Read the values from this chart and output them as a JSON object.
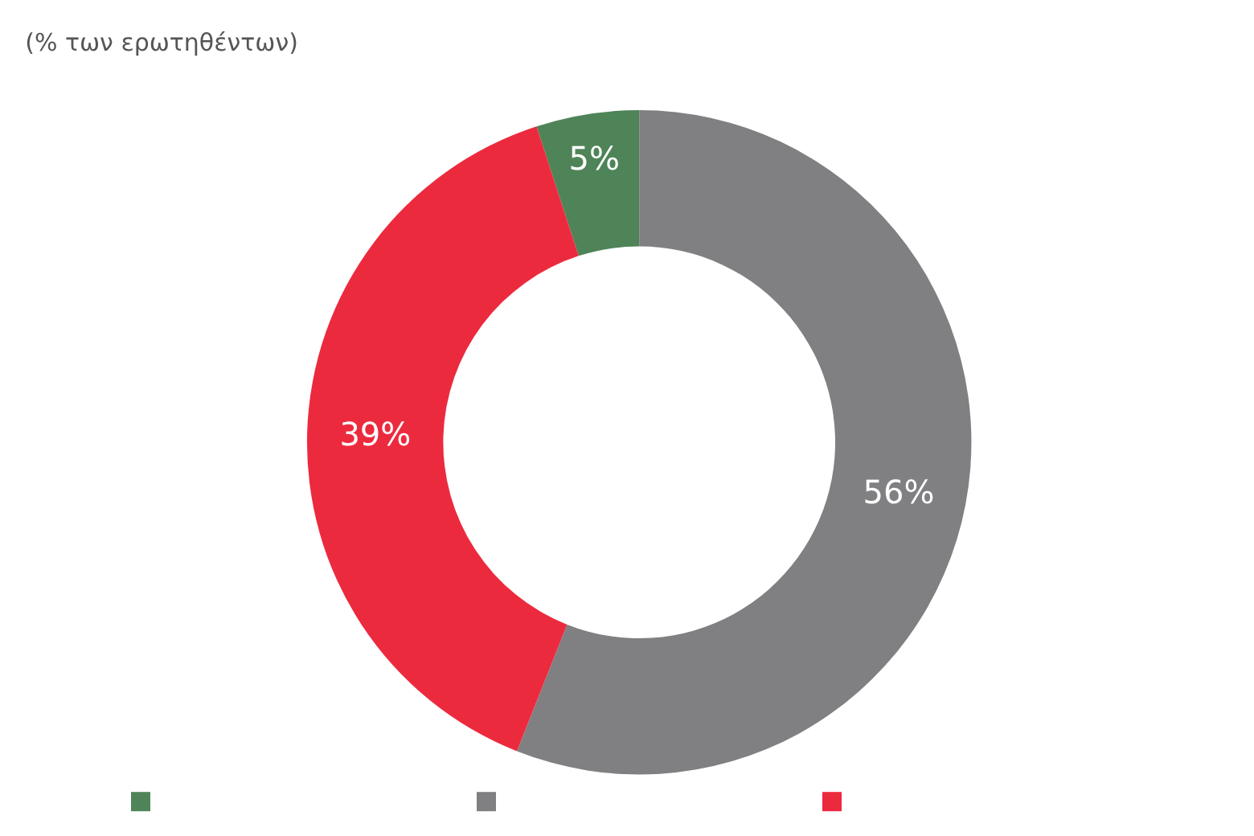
{
  "chart_data": {
    "type": "donut",
    "title": "(% των ερωτηθέντων)",
    "categories": [
      null,
      null,
      null
    ],
    "values": [
      5,
      56,
      39
    ],
    "value_labels": [
      "5%",
      "56%",
      "39%"
    ],
    "colors": [
      "#4e8458",
      "#808083",
      "#ec2a3e"
    ]
  }
}
